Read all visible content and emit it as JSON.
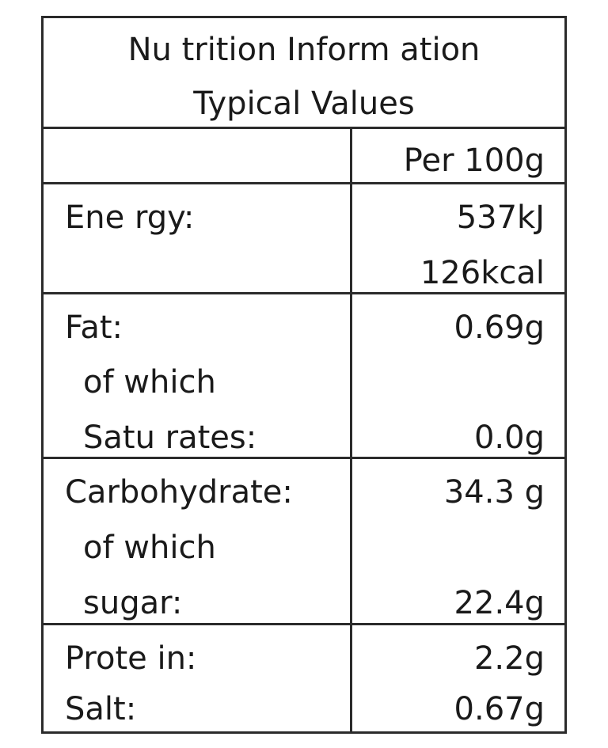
{
  "title": {
    "line1": "Nu trition Inform ation",
    "line2": "Typical Values"
  },
  "column_header": "Per 100g",
  "rows": {
    "energy": {
      "label": "Ene rgy:",
      "kj": "537kJ",
      "kcal": "126kcal"
    },
    "fat": {
      "label": "Fat:",
      "value": "0.69g",
      "sub_label_1": "of which",
      "sub_label_2": "Satu rates:",
      "sub_value": "0.0g"
    },
    "carbohydrate": {
      "label": "Carbohydrate:",
      "value": "34.3 g",
      "sub_label_1": "of which",
      "sub_label_2": "sugar:",
      "sub_value": "22.4g"
    },
    "protein": {
      "label": "Prote in:",
      "value": "2.2g"
    },
    "salt": {
      "label": "Salt:",
      "value": "0.67g"
    }
  }
}
